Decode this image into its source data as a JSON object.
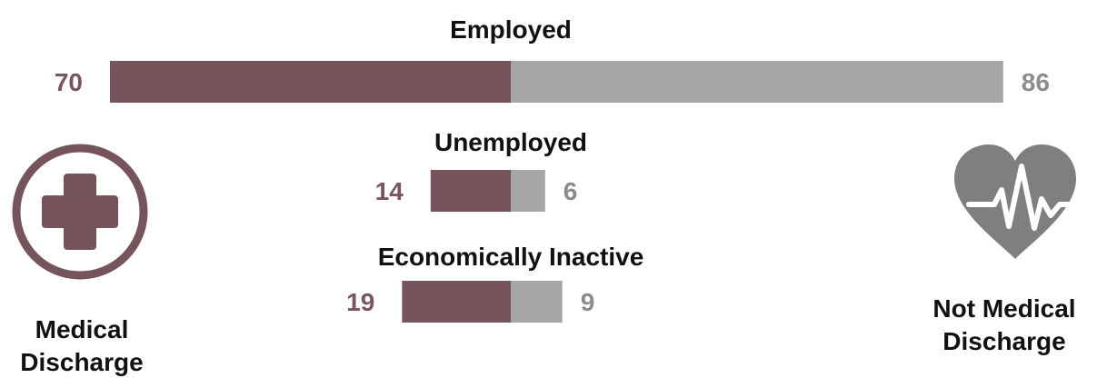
{
  "chart_data": {
    "type": "bar",
    "orientation": "diverging-horizontal",
    "categories": [
      "Employed",
      "Unemployed",
      "Economically Inactive"
    ],
    "series": [
      {
        "name": "Medical Discharge",
        "values": [
          70,
          14,
          19
        ],
        "color": "#76545b"
      },
      {
        "name": "Not Medical Discharge",
        "values": [
          86,
          6,
          9
        ],
        "color": "#a6a6a6"
      }
    ]
  },
  "legend": {
    "medical": {
      "line1": "Medical",
      "line2": "Discharge",
      "icon": "medical-cross-icon"
    },
    "not_medical": {
      "line1": "Not Medical",
      "line2": "Discharge",
      "icon": "heartbeat-icon"
    }
  },
  "colors": {
    "medical": "#76545b",
    "not_medical": "#a6a6a6",
    "label_medical": "#7a5560",
    "label_not_medical": "#8c8c8c"
  }
}
